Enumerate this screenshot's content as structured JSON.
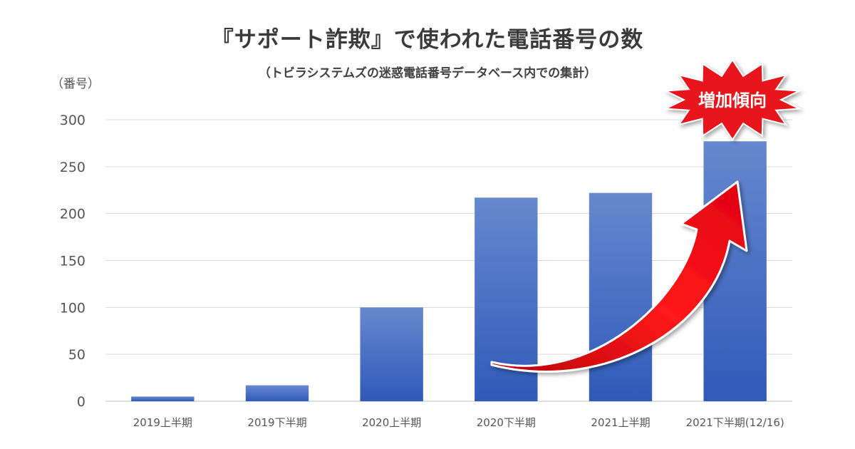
{
  "chart_data": {
    "type": "bar",
    "title": "『サポート詐欺』で使われた電話番号の数",
    "subtitle": "（トビラシステムズの迷惑電話番号データベース内での集計）",
    "ylabel": "（番号）",
    "xlabel": "",
    "categories": [
      "2019上半期",
      "2019下半期",
      "2020上半期",
      "2020下半期",
      "2021上半期",
      "2021下半期(12/16)"
    ],
    "values": [
      5,
      17,
      100,
      217,
      222,
      277
    ],
    "ylim": [
      0,
      300
    ],
    "yticks": [
      0,
      50,
      100,
      150,
      200,
      250,
      300
    ],
    "grid": true,
    "bar_color": "#4472c4",
    "annotation": {
      "text": "増加傾向",
      "color": "#e8131b",
      "arrow_color": "#e8131b"
    }
  }
}
